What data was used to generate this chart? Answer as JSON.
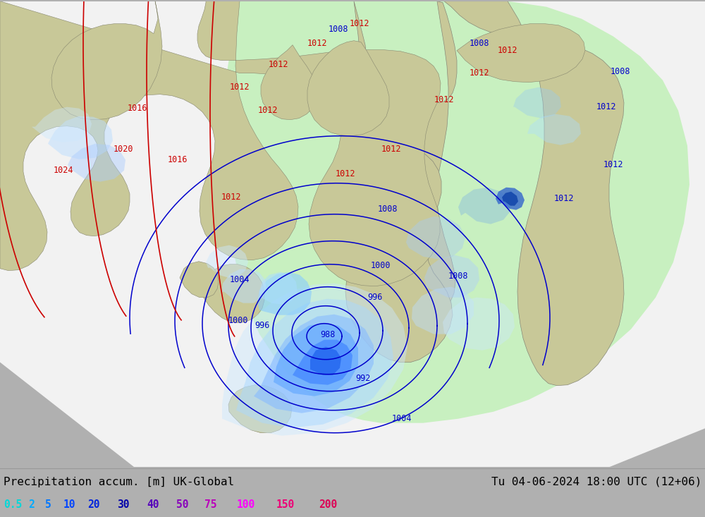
{
  "title_left": "Precipitation accum. [m] UK-Global",
  "title_right": "Tu 04-06-2024 18:00 UTC (12+06)",
  "legend_values": [
    "0.5",
    "2",
    "5",
    "10",
    "20",
    "30",
    "40",
    "50",
    "75",
    "100",
    "150",
    "200"
  ],
  "legend_colors": [
    "#00d8d8",
    "#00aaff",
    "#0077ff",
    "#0044ff",
    "#0022dd",
    "#0000aa",
    "#5500bb",
    "#8800bb",
    "#bb00bb",
    "#ff00ff",
    "#ee0077",
    "#dd0055"
  ],
  "outside_color": "#b0b0b0",
  "forecast_white_color": "#f0f0f0",
  "forecast_green_color": "#c8f0c0",
  "land_color": "#c8c898",
  "land_edge_color": "#888878",
  "sea_in_domain_color": "#e8e8e8",
  "precip_colors": [
    "#dff5ff",
    "#bbeeff",
    "#88ccff",
    "#55aaff",
    "#2277ee",
    "#0044cc",
    "#1100aa"
  ],
  "blue_isobar_color": "#0000cc",
  "red_isobar_color": "#cc0000",
  "bottom_bg": "#d8d8d8",
  "fig_w": 10.0,
  "fig_h": 7.33,
  "dpi": 100
}
